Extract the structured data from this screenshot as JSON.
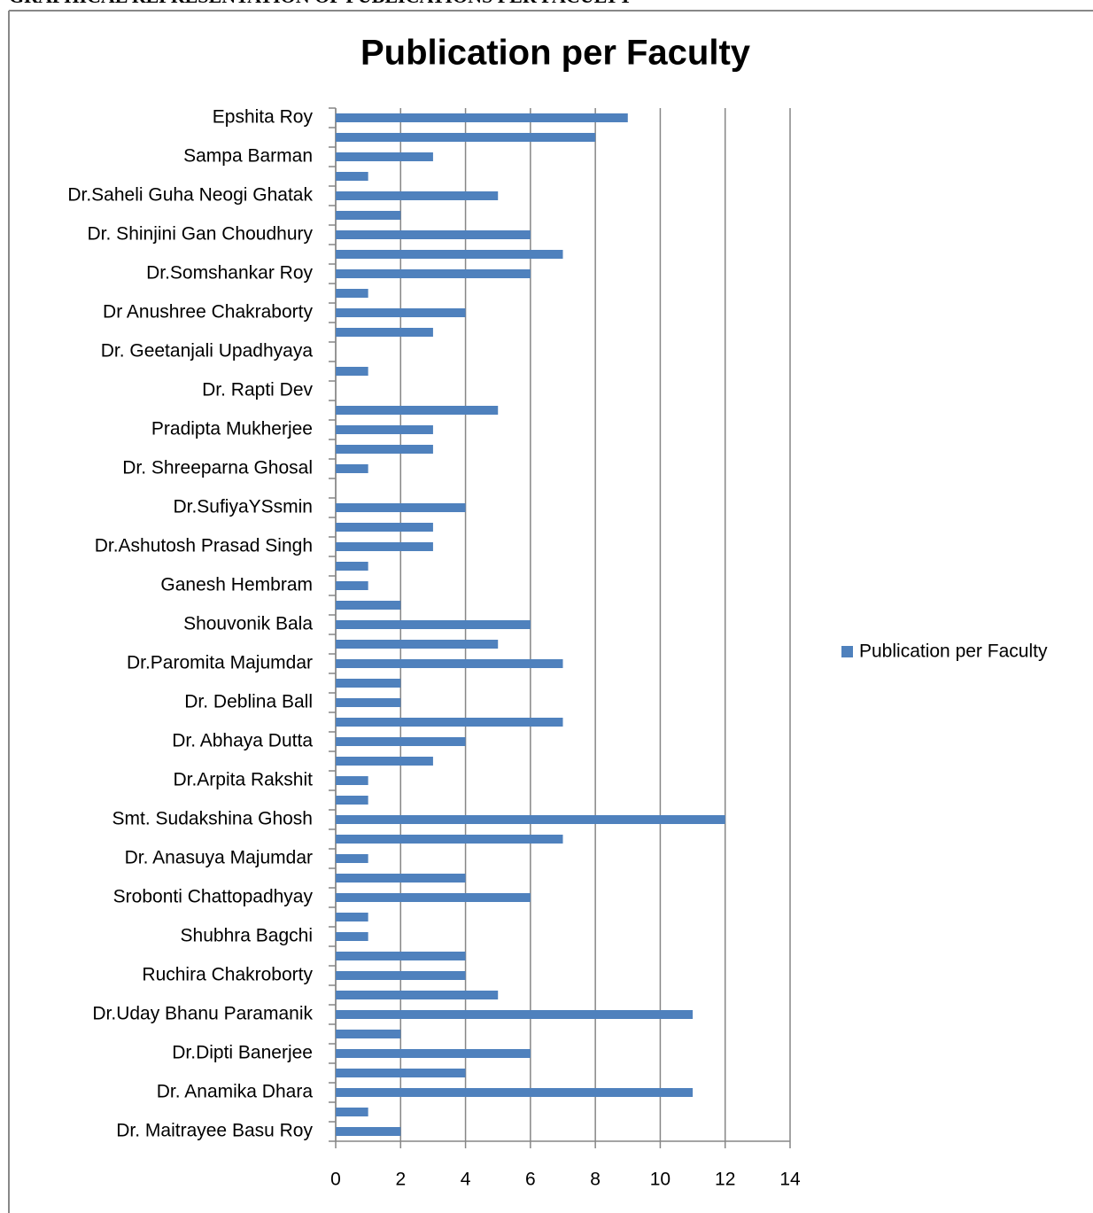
{
  "header": "GRAPHICAL REPRESENTATION OF PUBLICATIONS PER FACULTY",
  "chart_data": {
    "type": "barh",
    "title": "Publication per Faculty",
    "categories": [
      "Epshita Roy",
      null,
      "Sampa Barman",
      null,
      "Dr.Saheli Guha Neogi Ghatak",
      null,
      "Dr. Shinjini Gan Choudhury",
      null,
      "Dr.Somshankar Roy",
      null,
      "Dr Anushree Chakraborty",
      null,
      "Dr. Geetanjali Upadhyaya",
      null,
      "Dr. Rapti Dev",
      null,
      "Pradipta Mukherjee",
      null,
      "Dr. Shreeparna Ghosal",
      null,
      "Dr.SufiyaYSsmin",
      null,
      "Dr.Ashutosh Prasad Singh",
      null,
      "Ganesh Hembram",
      null,
      "Shouvonik Bala",
      null,
      "Dr.Paromita Majumdar",
      null,
      "Dr. Deblina Ball",
      null,
      "Dr. Abhaya Dutta",
      null,
      "Dr.Arpita Rakshit",
      null,
      "Smt. Sudakshina Ghosh",
      null,
      "Dr. Anasuya Majumdar",
      null,
      "Srobonti Chattopadhyay",
      null,
      "Shubhra Bagchi",
      null,
      "Ruchira Chakroborty",
      null,
      "Dr.Uday Bhanu Paramanik",
      null,
      "Dr.Dipti Banerjee",
      null,
      "Dr. Anamika Dhara",
      null,
      "Dr. Maitrayee Basu Roy"
    ],
    "series": [
      {
        "name": "Publication per Faculty",
        "color": "#4f81bd",
        "values": [
          9,
          8,
          3,
          1,
          5,
          2,
          6,
          7,
          6,
          1,
          4,
          3,
          0,
          1,
          0,
          5,
          3,
          3,
          1,
          0,
          4,
          3,
          3,
          1,
          1,
          2,
          6,
          5,
          7,
          2,
          2,
          7,
          4,
          3,
          1,
          1,
          12,
          7,
          1,
          4,
          6,
          1,
          1,
          4,
          4,
          5,
          11,
          2,
          6,
          4,
          11,
          1,
          2
        ]
      }
    ],
    "xlim": [
      0,
      14
    ],
    "xticks": [
      0,
      2,
      4,
      6,
      8,
      10,
      12,
      14
    ],
    "grid": true,
    "legend": "right"
  }
}
